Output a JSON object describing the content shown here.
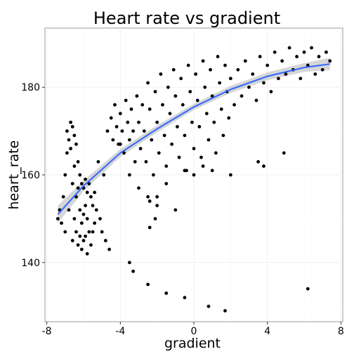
{
  "chart_data": {
    "type": "scatter",
    "title": "Heart rate vs gradient",
    "xlabel": "gradient",
    "ylabel": "heart_rate",
    "xlim": [
      -8.1,
      8.1
    ],
    "ylim": [
      126.5,
      193.5
    ],
    "x_ticks": [
      -8,
      -4,
      0,
      4,
      8
    ],
    "y_ticks": [
      140,
      160,
      180
    ],
    "x_tick_labels": [
      "-8",
      "-4",
      "0",
      "4",
      "8"
    ],
    "y_tick_labels": [
      "140",
      "160",
      "180"
    ],
    "grid": true,
    "point_color": "#000000",
    "smooth_color": "#3366FF",
    "band_color": "#999999",
    "series": [
      {
        "kind": "points",
        "points": [
          [
            -7.4,
            150
          ],
          [
            -7.3,
            152
          ],
          [
            -7.2,
            149
          ],
          [
            -7.1,
            155
          ],
          [
            -7.0,
            160
          ],
          [
            -7.0,
            147
          ],
          [
            -6.9,
            165
          ],
          [
            -6.9,
            170
          ],
          [
            -6.8,
            168
          ],
          [
            -6.8,
            152
          ],
          [
            -6.7,
            172
          ],
          [
            -6.7,
            166
          ],
          [
            -6.6,
            171
          ],
          [
            -6.6,
            158
          ],
          [
            -6.6,
            145
          ],
          [
            -6.5,
            169
          ],
          [
            -6.5,
            162
          ],
          [
            -6.5,
            150
          ],
          [
            -6.4,
            167
          ],
          [
            -6.4,
            155
          ],
          [
            -6.4,
            147
          ],
          [
            -6.3,
            163
          ],
          [
            -6.3,
            157
          ],
          [
            -6.3,
            144
          ],
          [
            -6.2,
            160
          ],
          [
            -6.2,
            152
          ],
          [
            -6.2,
            146
          ],
          [
            -6.1,
            158
          ],
          [
            -6.1,
            149
          ],
          [
            -6.1,
            143
          ],
          [
            -6.0,
            157
          ],
          [
            -6.0,
            151
          ],
          [
            -6.0,
            145
          ],
          [
            -5.9,
            159
          ],
          [
            -5.9,
            153
          ],
          [
            -5.9,
            146
          ],
          [
            -5.8,
            156
          ],
          [
            -5.8,
            150
          ],
          [
            -5.8,
            142
          ],
          [
            -5.7,
            158
          ],
          [
            -5.7,
            147
          ],
          [
            -5.6,
            155
          ],
          [
            -5.6,
            144
          ],
          [
            -5.5,
            153
          ],
          [
            -5.5,
            147
          ],
          [
            -5.4,
            149
          ],
          [
            -5.4,
            156
          ],
          [
            -5.3,
            152
          ],
          [
            -5.2,
            163
          ],
          [
            -5.0,
            147
          ],
          [
            -4.8,
            145
          ],
          [
            -4.6,
            143
          ],
          [
            -5.1,
            150
          ],
          [
            -4.9,
            160
          ],
          [
            -4.7,
            170
          ],
          [
            -4.5,
            173
          ],
          [
            -4.4,
            168
          ],
          [
            -4.3,
            176
          ],
          [
            -4.2,
            171
          ],
          [
            -4.1,
            167
          ],
          [
            -4.0,
            174
          ],
          [
            -3.9,
            170
          ],
          [
            -3.8,
            165
          ],
          [
            -3.7,
            177
          ],
          [
            -3.6,
            172
          ],
          [
            -3.5,
            168
          ],
          [
            -3.4,
            175
          ],
          [
            -3.3,
            170
          ],
          [
            -3.2,
            163
          ],
          [
            -3.1,
            178
          ],
          [
            -3.0,
            172
          ],
          [
            -2.9,
            166
          ],
          [
            -2.8,
            176
          ],
          [
            -2.7,
            170
          ],
          [
            -2.6,
            163
          ],
          [
            -2.5,
            181
          ],
          [
            -2.4,
            175
          ],
          [
            -2.3,
            168
          ],
          [
            -2.2,
            160
          ],
          [
            -2.1,
            179
          ],
          [
            -2.0,
            172
          ],
          [
            -1.9,
            165
          ],
          [
            -1.8,
            183
          ],
          [
            -1.7,
            176
          ],
          [
            -1.6,
            169
          ],
          [
            -1.5,
            162
          ],
          [
            -1.4,
            180
          ],
          [
            -1.3,
            174
          ],
          [
            -1.2,
            167
          ],
          [
            -1.1,
            184
          ],
          [
            -1.0,
            178
          ],
          [
            -0.9,
            171
          ],
          [
            -0.8,
            164
          ],
          [
            -0.7,
            182
          ],
          [
            -0.6,
            176
          ],
          [
            -0.5,
            169
          ],
          [
            -0.4,
            161
          ],
          [
            -0.3,
            185
          ],
          [
            -0.2,
            179
          ],
          [
            -0.1,
            172
          ],
          [
            0.0,
            166
          ],
          [
            0.1,
            183
          ],
          [
            0.2,
            177
          ],
          [
            0.3,
            171
          ],
          [
            0.4,
            164
          ],
          [
            0.5,
            186
          ],
          [
            0.6,
            180
          ],
          [
            0.7,
            174
          ],
          [
            0.8,
            168
          ],
          [
            0.9,
            184
          ],
          [
            1.0,
            178
          ],
          [
            1.1,
            172
          ],
          [
            1.2,
            165
          ],
          [
            1.3,
            187
          ],
          [
            1.4,
            181
          ],
          [
            1.5,
            175
          ],
          [
            1.6,
            169
          ],
          [
            1.7,
            185
          ],
          [
            1.8,
            179
          ],
          [
            1.9,
            173
          ],
          [
            2.0,
            182
          ],
          [
            2.2,
            176
          ],
          [
            2.4,
            184
          ],
          [
            2.6,
            178
          ],
          [
            2.8,
            186
          ],
          [
            3.0,
            180
          ],
          [
            3.2,
            183
          ],
          [
            3.4,
            177
          ],
          [
            3.6,
            187
          ],
          [
            3.8,
            181
          ],
          [
            4.0,
            185
          ],
          [
            4.2,
            179
          ],
          [
            4.4,
            188
          ],
          [
            4.6,
            182
          ],
          [
            4.8,
            186
          ],
          [
            5.0,
            183
          ],
          [
            5.2,
            189
          ],
          [
            5.4,
            184
          ],
          [
            5.6,
            187
          ],
          [
            5.8,
            182
          ],
          [
            6.0,
            188
          ],
          [
            6.2,
            185
          ],
          [
            6.4,
            189
          ],
          [
            6.6,
            183
          ],
          [
            6.8,
            187
          ],
          [
            7.0,
            184
          ],
          [
            7.2,
            188
          ],
          [
            7.4,
            186
          ],
          [
            -4.0,
            167
          ],
          [
            -3.5,
            160
          ],
          [
            -3.0,
            157
          ],
          [
            -2.5,
            155
          ],
          [
            -2.0,
            153
          ],
          [
            -1.5,
            158
          ],
          [
            -1.0,
            152
          ],
          [
            -0.5,
            161
          ],
          [
            0.0,
            160
          ],
          [
            0.5,
            162
          ],
          [
            1.0,
            161
          ],
          [
            2.0,
            160
          ],
          [
            3.5,
            163
          ],
          [
            3.8,
            162
          ],
          [
            4.9,
            165
          ],
          [
            -3.5,
            140
          ],
          [
            -3.3,
            138
          ],
          [
            -2.5,
            135
          ],
          [
            -1.5,
            133
          ],
          [
            -0.5,
            132
          ],
          [
            0.8,
            130
          ],
          [
            1.7,
            129
          ],
          [
            6.2,
            134
          ],
          [
            -2.4,
            148
          ],
          [
            -2.1,
            150
          ],
          [
            -2.0,
            155
          ],
          [
            -2.4,
            154
          ]
        ]
      },
      {
        "kind": "smooth",
        "points": [
          [
            -7.4,
            151
          ],
          [
            -6,
            157.5
          ],
          [
            -4,
            165
          ],
          [
            -2,
            170.5
          ],
          [
            0,
            175.5
          ],
          [
            2,
            179.5
          ],
          [
            4,
            182.5
          ],
          [
            6,
            184.5
          ],
          [
            7.4,
            185.3
          ]
        ]
      }
    ]
  }
}
